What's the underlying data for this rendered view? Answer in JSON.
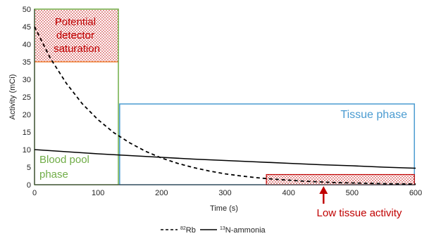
{
  "chart_data": {
    "type": "line",
    "xlabel": "Time (s)",
    "ylabel": "Activity (mCi)",
    "xlim": [
      0,
      600
    ],
    "ylim": [
      0,
      50
    ],
    "xticks": [
      0,
      100,
      200,
      300,
      400,
      500,
      600
    ],
    "yticks": [
      0,
      5,
      10,
      15,
      20,
      25,
      30,
      35,
      40,
      45,
      50
    ],
    "grid": false,
    "legend_position": "bottom",
    "series": [
      {
        "name": "82Rb",
        "legend_sup": "82",
        "legend_text": "Rb",
        "style": "dashed",
        "x": [
          0,
          25,
          50,
          75,
          100,
          125,
          150,
          175,
          200,
          225,
          250,
          275,
          300,
          325,
          350,
          375,
          400,
          425,
          450,
          475,
          500,
          525,
          550,
          575,
          600
        ],
        "y": [
          45.0,
          36.0,
          28.9,
          23.1,
          18.5,
          14.8,
          11.9,
          9.5,
          7.6,
          6.1,
          4.9,
          3.9,
          3.1,
          2.5,
          2.0,
          1.6,
          1.3,
          1.0,
          0.8,
          0.6,
          0.5,
          0.4,
          0.3,
          0.25,
          0.2
        ]
      },
      {
        "name": "13N-ammonia",
        "legend_sup": "13",
        "legend_text": "N-ammonia",
        "style": "solid",
        "x": [
          0,
          50,
          100,
          150,
          200,
          250,
          300,
          350,
          400,
          450,
          500,
          550,
          600
        ],
        "y": [
          10.0,
          9.4,
          8.8,
          8.3,
          7.8,
          7.3,
          6.9,
          6.5,
          6.1,
          5.7,
          5.4,
          5.0,
          4.7
        ]
      }
    ],
    "annotations": [
      {
        "id": "saturation",
        "text_lines": [
          "Potential",
          "detector",
          "saturation"
        ],
        "color": "#c00000",
        "fill": "dots",
        "border": "#70ad47",
        "x0": 0,
        "x1": 132,
        "y0": 35,
        "y1": 50
      },
      {
        "id": "blood-pool",
        "text_lines": [
          "Blood pool",
          "phase"
        ],
        "color": "#70ad47",
        "border": "#70ad47",
        "x0": 0,
        "x1": 132,
        "y0": 0,
        "y1": 50
      },
      {
        "id": "tissue",
        "text_lines": [
          "Tissue phase"
        ],
        "color": "#4a9bd1",
        "border": "#4a9bd1",
        "x0": 134,
        "x1": 598,
        "y0": 0,
        "y1": 23
      },
      {
        "id": "low-tissue",
        "text_lines": [
          "Low tissue activity"
        ],
        "color": "#c00000",
        "fill": "dots",
        "border": "#c00000",
        "x0": 365,
        "x1": 598,
        "y0": 0,
        "y1": 2.9,
        "arrow_x": 455
      }
    ],
    "colors": {
      "saturation_line": "#ed7d31",
      "green": "#70ad47",
      "blue": "#4a9bd1",
      "red": "#c00000",
      "curve": "#000000"
    }
  }
}
